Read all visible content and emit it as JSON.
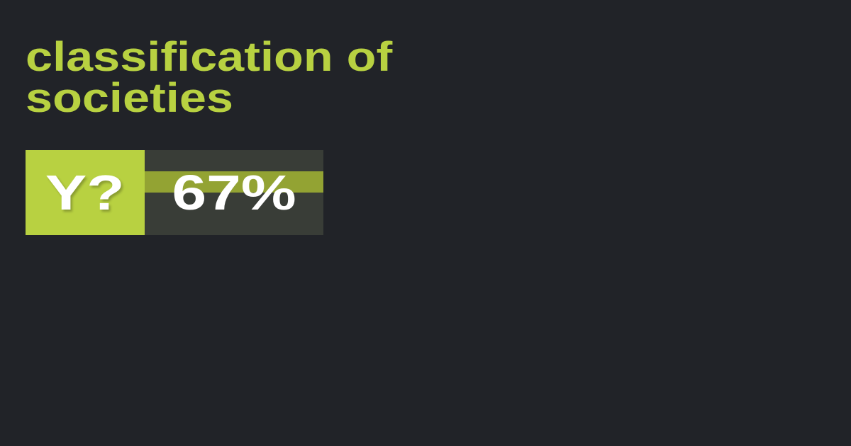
{
  "title": "classification of societies",
  "badge": {
    "label": "Y?",
    "value": "67%",
    "colors": {
      "accent": "#b8d141",
      "band": "#93a333",
      "panel": "#393d37",
      "background": "#212328"
    }
  }
}
